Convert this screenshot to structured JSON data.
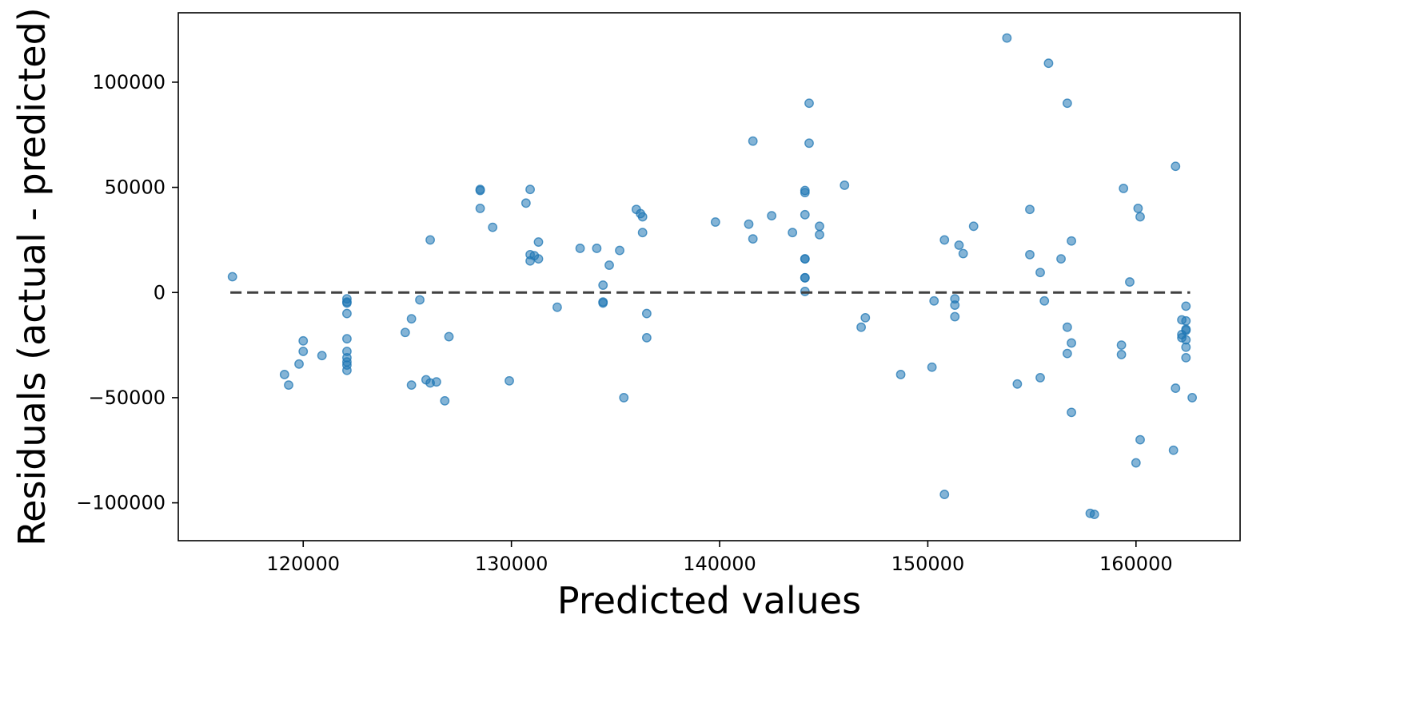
{
  "chart_data": {
    "type": "scatter",
    "title": "",
    "xlabel": "Predicted values",
    "ylabel": "Residuals (actual - predicted)",
    "xlim": [
      114000,
      165000
    ],
    "ylim": [
      -118000,
      133000
    ],
    "xticks": [
      120000,
      130000,
      140000,
      150000,
      160000
    ],
    "xtick_labels": [
      "120000",
      "130000",
      "140000",
      "150000",
      "160000"
    ],
    "yticks": [
      -100000,
      -50000,
      0,
      50000,
      100000
    ],
    "ytick_labels": [
      "−100000",
      "−50000",
      "0",
      "50000",
      "100000"
    ],
    "grid": false,
    "legend": "none",
    "marker_color": "#1f77b4",
    "marker_alpha": 0.55,
    "reference_line": {
      "y": 0,
      "x_range": [
        116500,
        162600
      ],
      "style": "dashed",
      "color": "#404040"
    },
    "points": [
      [
        116600,
        7500
      ],
      [
        119100,
        -39000
      ],
      [
        119300,
        -44000
      ],
      [
        119800,
        -34000
      ],
      [
        120000,
        -23000
      ],
      [
        120000,
        -28000
      ],
      [
        120900,
        -30000
      ],
      [
        122100,
        -3000
      ],
      [
        122100,
        -4500
      ],
      [
        122100,
        -5000
      ],
      [
        122100,
        -10000
      ],
      [
        122100,
        -22000
      ],
      [
        122100,
        -28000
      ],
      [
        122100,
        -31000
      ],
      [
        122100,
        -33000
      ],
      [
        122100,
        -34500
      ],
      [
        122100,
        -37000
      ],
      [
        124900,
        -19000
      ],
      [
        125200,
        -12500
      ],
      [
        125200,
        -44000
      ],
      [
        125600,
        -3500
      ],
      [
        125900,
        -41500
      ],
      [
        126100,
        25000
      ],
      [
        126100,
        -43000
      ],
      [
        126400,
        -42500
      ],
      [
        126800,
        -51500
      ],
      [
        127000,
        -21000
      ],
      [
        128500,
        49000
      ],
      [
        128500,
        48500
      ],
      [
        128500,
        40000
      ],
      [
        129100,
        31000
      ],
      [
        129900,
        -42000
      ],
      [
        130700,
        42500
      ],
      [
        130900,
        49000
      ],
      [
        130900,
        18000
      ],
      [
        130900,
        15000
      ],
      [
        131100,
        17500
      ],
      [
        131300,
        24000
      ],
      [
        131300,
        16000
      ],
      [
        132200,
        -7000
      ],
      [
        133300,
        21000
      ],
      [
        134100,
        21000
      ],
      [
        134400,
        3500
      ],
      [
        134400,
        -4500
      ],
      [
        134400,
        -5000
      ],
      [
        134700,
        13000
      ],
      [
        135200,
        20000
      ],
      [
        135400,
        -50000
      ],
      [
        136000,
        39500
      ],
      [
        136200,
        37500
      ],
      [
        136300,
        36000
      ],
      [
        136300,
        28500
      ],
      [
        136500,
        -10000
      ],
      [
        136500,
        -21500
      ],
      [
        139800,
        33500
      ],
      [
        141400,
        32500
      ],
      [
        141600,
        25500
      ],
      [
        141600,
        72000
      ],
      [
        142500,
        36500
      ],
      [
        143500,
        28500
      ],
      [
        144100,
        48500
      ],
      [
        144100,
        47500
      ],
      [
        144100,
        37000
      ],
      [
        144100,
        16000
      ],
      [
        144100,
        16000
      ],
      [
        144100,
        7000
      ],
      [
        144100,
        7000
      ],
      [
        144100,
        500
      ],
      [
        144300,
        90000
      ],
      [
        144300,
        71000
      ],
      [
        144800,
        31500
      ],
      [
        144800,
        27500
      ],
      [
        146000,
        51000
      ],
      [
        146800,
        -16500
      ],
      [
        147000,
        -12000
      ],
      [
        148700,
        -39000
      ],
      [
        150200,
        -35500
      ],
      [
        150300,
        -4000
      ],
      [
        150800,
        25000
      ],
      [
        150800,
        -96000
      ],
      [
        151300,
        -3000
      ],
      [
        151300,
        -6000
      ],
      [
        151300,
        -11500
      ],
      [
        151500,
        22500
      ],
      [
        151700,
        18500
      ],
      [
        152200,
        31500
      ],
      [
        153800,
        121000
      ],
      [
        154300,
        -43500
      ],
      [
        154900,
        39500
      ],
      [
        154900,
        18000
      ],
      [
        155400,
        -40500
      ],
      [
        155400,
        9500
      ],
      [
        155600,
        -4000
      ],
      [
        155800,
        109000
      ],
      [
        156400,
        16000
      ],
      [
        156700,
        90000
      ],
      [
        156700,
        -16500
      ],
      [
        156700,
        -29000
      ],
      [
        156900,
        24500
      ],
      [
        156900,
        -24000
      ],
      [
        156900,
        -57000
      ],
      [
        157800,
        -105000
      ],
      [
        158000,
        -105500
      ],
      [
        159300,
        -25000
      ],
      [
        159300,
        -29500
      ],
      [
        159400,
        49500
      ],
      [
        159700,
        5000
      ],
      [
        160000,
        -81000
      ],
      [
        160100,
        40000
      ],
      [
        160200,
        36000
      ],
      [
        160200,
        -70000
      ],
      [
        161800,
        -75000
      ],
      [
        161900,
        -45500
      ],
      [
        161900,
        60000
      ],
      [
        162200,
        -13000
      ],
      [
        162200,
        -20000
      ],
      [
        162200,
        -21500
      ],
      [
        162400,
        -6500
      ],
      [
        162400,
        -13500
      ],
      [
        162400,
        -17500
      ],
      [
        162400,
        -18000
      ],
      [
        162400,
        -22500
      ],
      [
        162400,
        -26000
      ],
      [
        162400,
        -31000
      ],
      [
        162700,
        -50000
      ]
    ]
  }
}
